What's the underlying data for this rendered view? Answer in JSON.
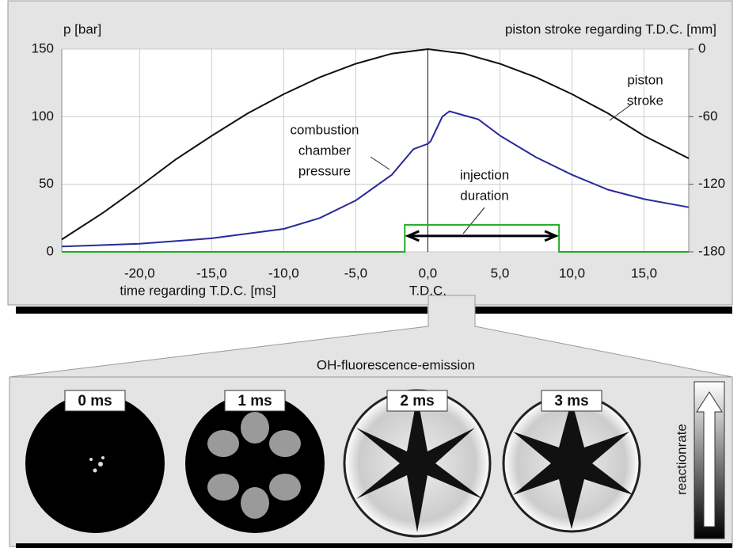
{
  "chart_data": {
    "type": "line",
    "y_label": "p  [bar]",
    "y2_label": "piston stroke regarding T.D.C. [mm]",
    "x_label": "time regarding T.D.C. [ms]",
    "x_mark_label": "T.D.C.",
    "xlim": [
      -25.4,
      18.1
    ],
    "xticks": [
      {
        "value": -20,
        "label": "-20,0"
      },
      {
        "value": -15,
        "label": "-15,0"
      },
      {
        "value": -10,
        "label": "-10,0"
      },
      {
        "value": -5,
        "label": "-5,0"
      },
      {
        "value": 0,
        "label": "0,0"
      },
      {
        "value": 5,
        "label": "5,0"
      },
      {
        "value": 10,
        "label": "10,0"
      },
      {
        "value": 15,
        "label": "15,0"
      }
    ],
    "ylim": [
      0,
      150
    ],
    "yticks": [
      0,
      50,
      100,
      150
    ],
    "y2lim": [
      -180,
      0
    ],
    "y2ticks": [
      -180,
      -120,
      -60,
      0
    ],
    "grid": true,
    "series": [
      {
        "annotation": [
          "piston",
          "stroke"
        ],
        "color": "#111111",
        "axis": "y2",
        "x": [
          -25.4,
          -22.5,
          -20,
          -17.5,
          -15,
          -12.5,
          -10,
          -7.5,
          -5,
          -2.5,
          0,
          2.5,
          5,
          7.5,
          10,
          12.5,
          15,
          18.1
        ],
        "values": [
          -169,
          -145,
          -122,
          -98,
          -77,
          -57,
          -40,
          -25,
          -13,
          -4,
          0,
          -4,
          -13,
          -25,
          -40,
          -57,
          -77,
          -97
        ]
      },
      {
        "annotation": [
          "combustion",
          "chamber",
          "pressure"
        ],
        "color": "#2a2a9a",
        "axis": "y",
        "x": [
          -25.4,
          -20,
          -15,
          -10,
          -7.5,
          -5,
          -2.5,
          -1,
          0,
          0.2,
          1,
          1.5,
          2.5,
          3.5,
          5,
          7.5,
          10,
          12.5,
          15,
          18.1
        ],
        "values": [
          4,
          6,
          10,
          17,
          25,
          38,
          57,
          76,
          80,
          82,
          100,
          104,
          101,
          98,
          86,
          70,
          57,
          46,
          39,
          33
        ]
      }
    ],
    "injection": {
      "annotation": [
        "injection",
        "duration"
      ],
      "start": -1.6,
      "end": 9.1,
      "level": 20,
      "color": "#22aa22"
    }
  },
  "figure": {
    "panel_title": "OH-fluorescence-emission",
    "frames": [
      "0 ms",
      "1 ms",
      "2 ms",
      "3 ms"
    ],
    "colorbar_label": "reactionrate"
  }
}
